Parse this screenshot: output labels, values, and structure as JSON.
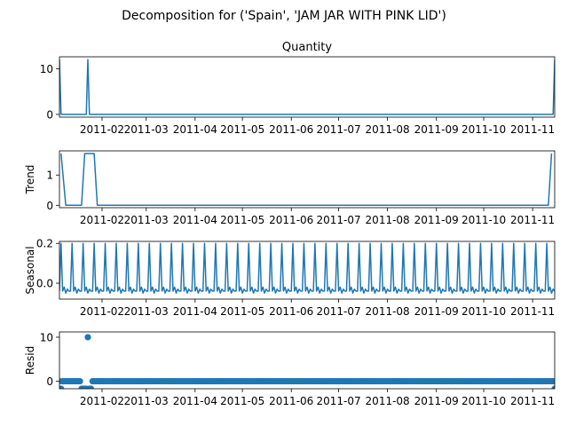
{
  "figure_title": "Decomposition for ('Spain', 'JAM JAR WITH PINK LID')",
  "colors": {
    "series": "#1f77b4",
    "axes": "#000000",
    "background": "#ffffff"
  },
  "chart_data": [
    {
      "type": "line",
      "title": "Quantity",
      "ylabel": "",
      "x_start": "2011-01-05",
      "x_end": "2011-11-15",
      "xlim": [
        "2011-01-05",
        "2011-11-15"
      ],
      "ylim": [
        -0.6,
        12.6
      ],
      "yticks": [
        0,
        10
      ],
      "xticks": [
        "2011-02",
        "2011-03",
        "2011-04",
        "2011-05",
        "2011-06",
        "2011-07",
        "2011-08",
        "2011-09",
        "2011-10",
        "2011-11"
      ],
      "show_xtick_labels": true,
      "points": [
        [
          "2011-01-05",
          12
        ],
        [
          "2011-01-06",
          0
        ],
        [
          "2011-01-22",
          0
        ],
        [
          "2011-01-23",
          12
        ],
        [
          "2011-01-24",
          0
        ],
        [
          "2011-11-14",
          0
        ],
        [
          "2011-11-15",
          12
        ]
      ]
    },
    {
      "type": "line",
      "title": "",
      "ylabel": "Trend",
      "xlim": [
        "2011-01-05",
        "2011-11-15"
      ],
      "ylim": [
        -0.08,
        1.8
      ],
      "yticks": [
        0,
        1
      ],
      "xticks": [
        "2011-02",
        "2011-03",
        "2011-04",
        "2011-05",
        "2011-06",
        "2011-07",
        "2011-08",
        "2011-09",
        "2011-10",
        "2011-11"
      ],
      "show_xtick_labels": true,
      "points": [
        [
          "2011-01-06",
          1.71
        ],
        [
          "2011-01-09",
          0
        ],
        [
          "2011-01-19",
          0
        ],
        [
          "2011-01-21",
          1.71
        ],
        [
          "2011-01-27",
          1.71
        ],
        [
          "2011-01-29",
          0
        ],
        [
          "2011-11-11",
          0
        ],
        [
          "2011-11-13",
          1.71
        ]
      ]
    },
    {
      "type": "line",
      "title": "",
      "ylabel": "Seasonal",
      "xlim": [
        "2011-01-05",
        "2011-11-15"
      ],
      "ylim": [
        -0.08,
        0.21
      ],
      "yticks": [
        0.0,
        0.2
      ],
      "ytick_labels": [
        "0.0",
        "0.2"
      ],
      "xticks": [
        "2011-02",
        "2011-03",
        "2011-04",
        "2011-05",
        "2011-06",
        "2011-07",
        "2011-08",
        "2011-09",
        "2011-10",
        "2011-11"
      ],
      "show_xtick_labels": true,
      "period_days": 7,
      "weekly_pattern": [
        -0.04,
        0.2,
        -0.04,
        -0.02,
        -0.05,
        -0.03,
        -0.04
      ]
    },
    {
      "type": "scatter",
      "title": "",
      "ylabel": "Resid",
      "xlim": [
        "2011-01-05",
        "2011-11-15"
      ],
      "ylim": [
        -1.7,
        11.2
      ],
      "yticks": [
        0,
        10
      ],
      "xticks": [
        "2011-02",
        "2011-03",
        "2011-04",
        "2011-05",
        "2011-06",
        "2011-07",
        "2011-08",
        "2011-09",
        "2011-10",
        "2011-11"
      ],
      "show_xtick_labels": true,
      "baseline": 0,
      "outliers": [
        [
          "2011-01-06",
          -1.7
        ],
        [
          "2011-01-19",
          -1.7
        ],
        [
          "2011-01-20",
          -1.7
        ],
        [
          "2011-01-21",
          -1.7
        ],
        [
          "2011-01-22",
          -1.7
        ],
        [
          "2011-01-23",
          10
        ],
        [
          "2011-01-24",
          -1.7
        ],
        [
          "2011-01-25",
          -1.7
        ],
        [
          "2011-11-15",
          -1.7
        ]
      ]
    }
  ]
}
